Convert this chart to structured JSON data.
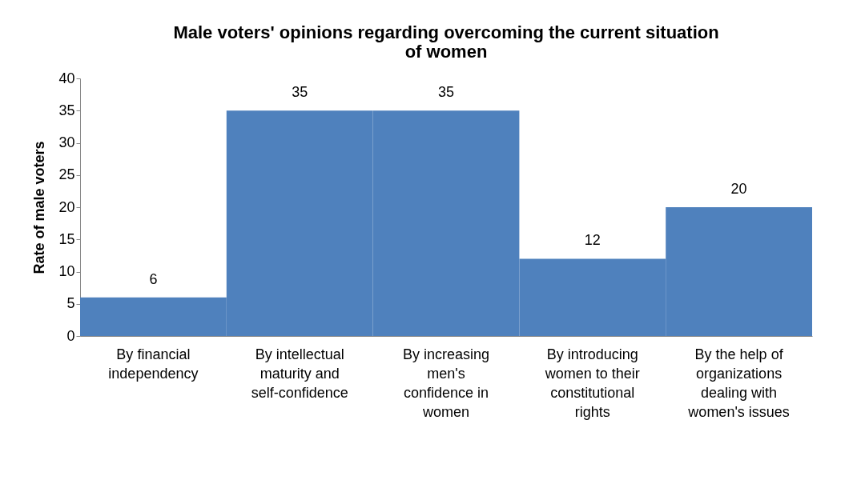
{
  "chart_data": {
    "type": "bar",
    "title": "Male voters' opinions regarding overcoming the current situation of women",
    "ylabel": "Rate of male voters",
    "categories": [
      "By financial independency",
      "By intellectual maturity and self-confidence",
      "By increasing men's confidence in women",
      "By introducing women to their constitutional rights",
      "By the help of organizations dealing with women's issues"
    ],
    "values": [
      6,
      35,
      35,
      12,
      20
    ],
    "color": "#4f81bd",
    "ylim": [
      0,
      40
    ],
    "yticks": [
      0,
      5,
      10,
      15,
      20,
      25,
      30,
      35,
      40
    ],
    "data_labels": true,
    "grid": false
  }
}
